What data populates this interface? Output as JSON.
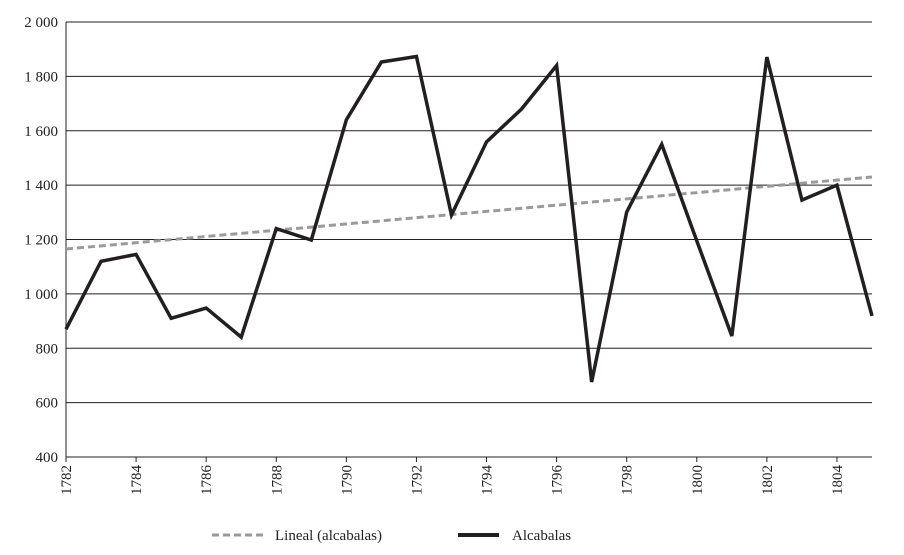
{
  "chart_data": {
    "type": "line",
    "title": "",
    "xlabel": "",
    "ylabel": "",
    "x": [
      1782,
      1783,
      1784,
      1785,
      1786,
      1787,
      1788,
      1789,
      1790,
      1791,
      1792,
      1793,
      1794,
      1795,
      1796,
      1797,
      1798,
      1799,
      1800,
      1801,
      1802,
      1803,
      1804,
      1805
    ],
    "xlim": [
      1782,
      1805
    ],
    "ylim": [
      400,
      2000
    ],
    "yticks": [
      400,
      600,
      800,
      1000,
      1200,
      1400,
      1600,
      1800,
      2000
    ],
    "ytick_labels": [
      "400",
      "600",
      "800",
      "1 000",
      "1 200",
      "1 400",
      "1 600",
      "1 800",
      "2 000"
    ],
    "xtick_labels": [
      "1782",
      "1784",
      "1786",
      "1788",
      "1790",
      "1792",
      "1794",
      "1796",
      "1798",
      "1800",
      "1802",
      "1804"
    ],
    "grid": "horizontal",
    "legend_placement": "bottom",
    "series": [
      {
        "name": "Alcabalas",
        "style": "solid",
        "color": "#231f20",
        "values": [
          870,
          1120,
          1145,
          910,
          948,
          841,
          1240,
          1198,
          1640,
          1853,
          1873,
          1290,
          1559,
          1680,
          1840,
          676,
          1301,
          1550,
          1195,
          845,
          1871,
          1345,
          1400,
          919
        ]
      },
      {
        "name": "Lineal (alcabalas)",
        "style": "dashed",
        "color": "#9a9a9a",
        "trend_start": 1165,
        "trend_end": 1430
      }
    ]
  }
}
